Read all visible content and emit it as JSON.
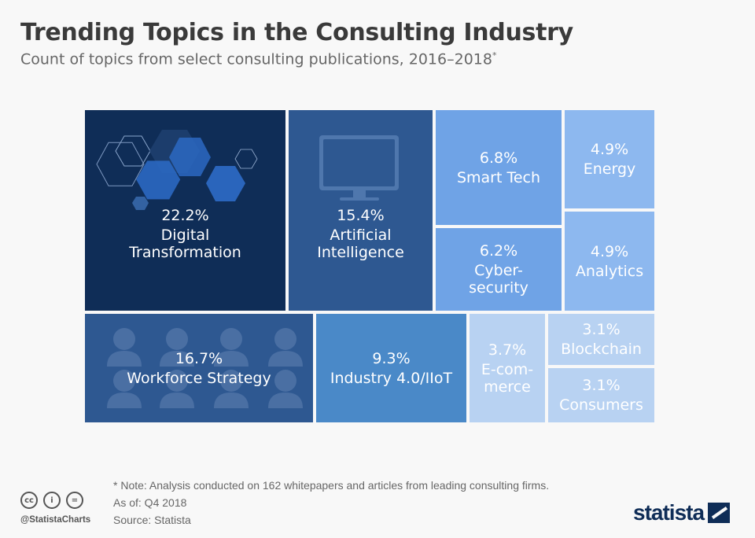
{
  "header": {
    "title": "Trending Topics in the Consulting Industry",
    "subtitle": "Count of topics from select consulting publications, 2016–2018",
    "subtitle_mark": "*"
  },
  "chart_data": {
    "type": "treemap",
    "unit": "%",
    "items": [
      {
        "label": "Digital\nTransformation",
        "value": 22.2,
        "value_label": "22.2%",
        "color": "#0f2d57",
        "icon": "hexagons-icon"
      },
      {
        "label": "Artificial\nIntelligence",
        "value": 15.4,
        "value_label": "15.4%",
        "color": "#2e5891",
        "icon": "monitor-icon"
      },
      {
        "label": "Smart Tech",
        "value": 6.8,
        "value_label": "6.8%",
        "color": "#6fa3e6"
      },
      {
        "label": "Cyber-\nsecurity",
        "value": 6.2,
        "value_label": "6.2%",
        "color": "#6fa3e6"
      },
      {
        "label": "Energy",
        "value": 4.9,
        "value_label": "4.9%",
        "color": "#8db8ef"
      },
      {
        "label": "Analytics",
        "value": 4.9,
        "value_label": "4.9%",
        "color": "#8db8ef"
      },
      {
        "label": "Workforce Strategy",
        "value": 16.7,
        "value_label": "16.7%",
        "color": "#2e5891",
        "icon": "people-icon"
      },
      {
        "label": "Industry 4.0/IIoT",
        "value": 9.3,
        "value_label": "9.3%",
        "color": "#4a89c8"
      },
      {
        "label": "E-com-\nmerce",
        "value": 3.7,
        "value_label": "3.7%",
        "color": "#b8d2f2"
      },
      {
        "label": "Blockchain",
        "value": 3.1,
        "value_label": "3.1%",
        "color": "#b8d2f2"
      },
      {
        "label": "Consumers",
        "value": 3.1,
        "value_label": "3.1%",
        "color": "#b8d2f2"
      }
    ]
  },
  "footer": {
    "note": "* Note: Analysis conducted on 162 whitepapers and articles from leading consulting firms.",
    "as_of": "As of: Q4 2018",
    "source": "Source: Statista",
    "handle": "@StatistaCharts",
    "logo": "statista"
  }
}
